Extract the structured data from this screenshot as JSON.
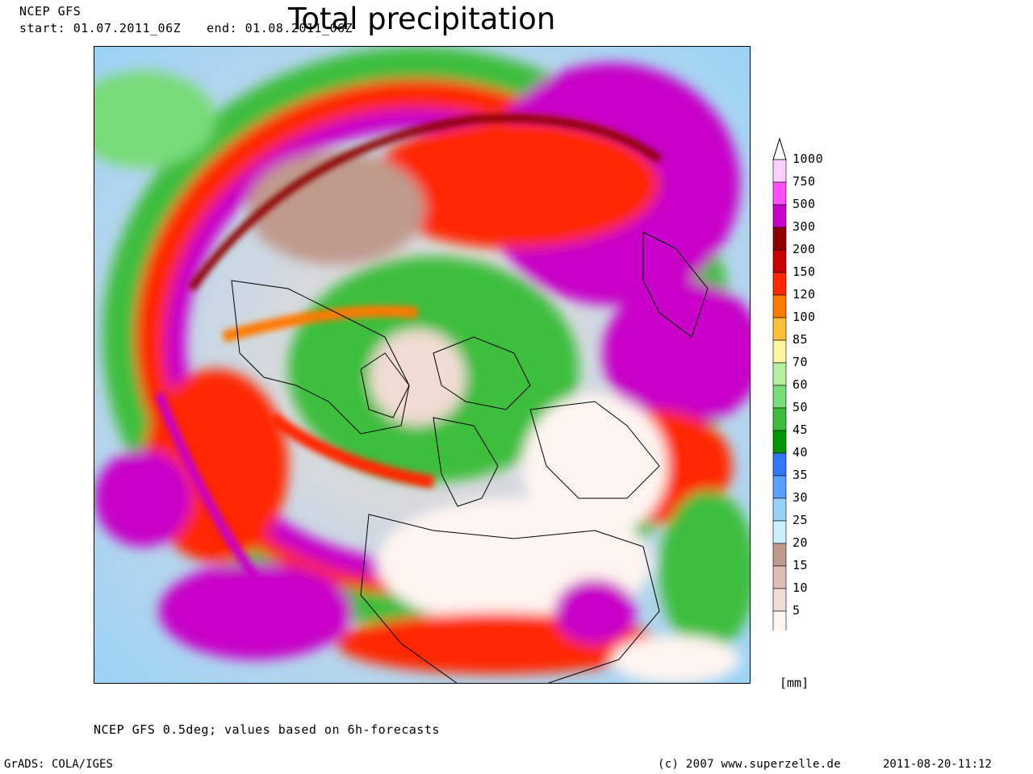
{
  "header": {
    "model": "NCEP GFS",
    "start": "start: 01.07.2011_06Z",
    "end": "end: 01.08.2011_06Z",
    "title": "Total precipitation"
  },
  "legend": {
    "unit": "[mm]",
    "levels": [
      {
        "label": "1000",
        "color": "#ffd0ff"
      },
      {
        "label": "750",
        "color": "#ff50ff"
      },
      {
        "label": "500",
        "color": "#c800c8"
      },
      {
        "label": "300",
        "color": "#8c0000"
      },
      {
        "label": "200",
        "color": "#c80000"
      },
      {
        "label": "150",
        "color": "#ff2800"
      },
      {
        "label": "120",
        "color": "#ff7800"
      },
      {
        "label": "100",
        "color": "#ffbe3c"
      },
      {
        "label": "85",
        "color": "#fff5a0"
      },
      {
        "label": "70",
        "color": "#b4f0a0"
      },
      {
        "label": "60",
        "color": "#78dc78"
      },
      {
        "label": "50",
        "color": "#3cbe3c"
      },
      {
        "label": "45",
        "color": "#009600"
      },
      {
        "label": "40",
        "color": "#3278ff"
      },
      {
        "label": "35",
        "color": "#5aa0ff"
      },
      {
        "label": "30",
        "color": "#96d2fa"
      },
      {
        "label": "25",
        "color": "#c8f0ff"
      },
      {
        "label": "20",
        "color": "#c09a8c"
      },
      {
        "label": "15",
        "color": "#dcbeb4"
      },
      {
        "label": "10",
        "color": "#f0dcd2"
      },
      {
        "label": "5",
        "color": "#fff5f0"
      }
    ]
  },
  "footer": {
    "note": "NCEP GFS 0.5deg; values based on 6h-forecasts",
    "software": "GrADS: COLA/IGES",
    "copyright": "(c) 2007 www.superzelle.de",
    "timestamp": "2011-08-20-11:12"
  }
}
